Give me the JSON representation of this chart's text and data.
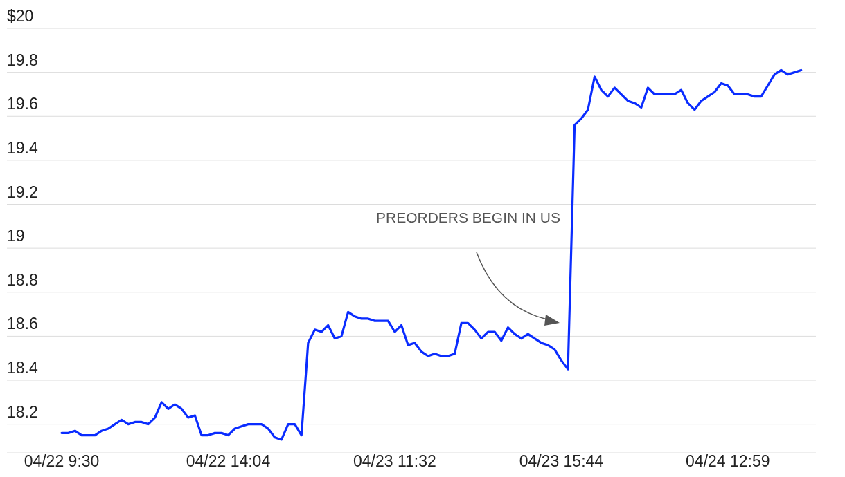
{
  "chart_data": {
    "type": "line",
    "categories": [
      "04/22 9:30",
      null,
      null,
      null,
      null,
      null,
      null,
      null,
      null,
      null,
      null,
      null,
      null,
      null,
      null,
      null,
      null,
      null,
      null,
      null,
      null,
      null,
      null,
      null,
      null,
      "04/22 14:04",
      null,
      null,
      null,
      null,
      null,
      null,
      null,
      null,
      null,
      null,
      null,
      null,
      null,
      null,
      null,
      null,
      null,
      null,
      null,
      null,
      null,
      null,
      null,
      null,
      "04/23 11:32",
      null,
      null,
      null,
      null,
      null,
      null,
      null,
      null,
      null,
      null,
      null,
      null,
      null,
      null,
      null,
      null,
      null,
      null,
      null,
      null,
      null,
      null,
      null,
      null,
      "04/23 15:44",
      null,
      null,
      null,
      null,
      null,
      null,
      null,
      null,
      null,
      null,
      null,
      null,
      null,
      null,
      null,
      null,
      null,
      null,
      null,
      null,
      null,
      null,
      null,
      null,
      "04/24 12:59",
      null,
      null,
      null,
      null,
      null,
      null,
      null,
      null,
      null,
      null,
      null
    ],
    "series": [
      {
        "color": "#0a2cff",
        "values": [
          18.16,
          18.16,
          18.17,
          18.15,
          18.15,
          18.15,
          18.17,
          18.18,
          18.2,
          18.22,
          18.2,
          18.21,
          18.21,
          18.2,
          18.23,
          18.3,
          18.27,
          18.29,
          18.27,
          18.23,
          18.24,
          18.15,
          18.15,
          18.16,
          18.16,
          18.15,
          18.18,
          18.19,
          18.2,
          18.2,
          18.2,
          18.18,
          18.14,
          18.13,
          18.2,
          18.2,
          18.15,
          18.57,
          18.63,
          18.62,
          18.65,
          18.59,
          18.6,
          18.71,
          18.69,
          18.68,
          18.68,
          18.67,
          18.67,
          18.67,
          18.62,
          18.65,
          18.56,
          18.57,
          18.53,
          18.51,
          18.52,
          18.51,
          18.51,
          18.52,
          18.66,
          18.66,
          18.63,
          18.59,
          18.62,
          18.62,
          18.58,
          18.64,
          18.61,
          18.59,
          18.61,
          18.59,
          18.57,
          18.56,
          18.54,
          18.49,
          18.45,
          19.56,
          19.59,
          19.63,
          19.78,
          19.72,
          19.69,
          19.73,
          19.7,
          19.67,
          19.66,
          19.64,
          19.73,
          19.7,
          19.7,
          19.7,
          19.7,
          19.72,
          19.66,
          19.63,
          19.67,
          19.69,
          19.71,
          19.75,
          19.74,
          19.7,
          19.7,
          19.7,
          19.69,
          19.69,
          19.74,
          19.79,
          19.81,
          19.79,
          19.8,
          19.81
        ]
      }
    ],
    "ylim": [
      18.07,
      20
    ],
    "yticks": [
      18.2,
      18.4,
      18.6,
      18.8,
      19,
      19.2,
      19.4,
      19.6,
      19.8,
      {
        "value": 20,
        "label": "$20"
      }
    ],
    "grid": "y",
    "annotations": [
      "PREORDERS BEGIN IN US"
    ]
  }
}
